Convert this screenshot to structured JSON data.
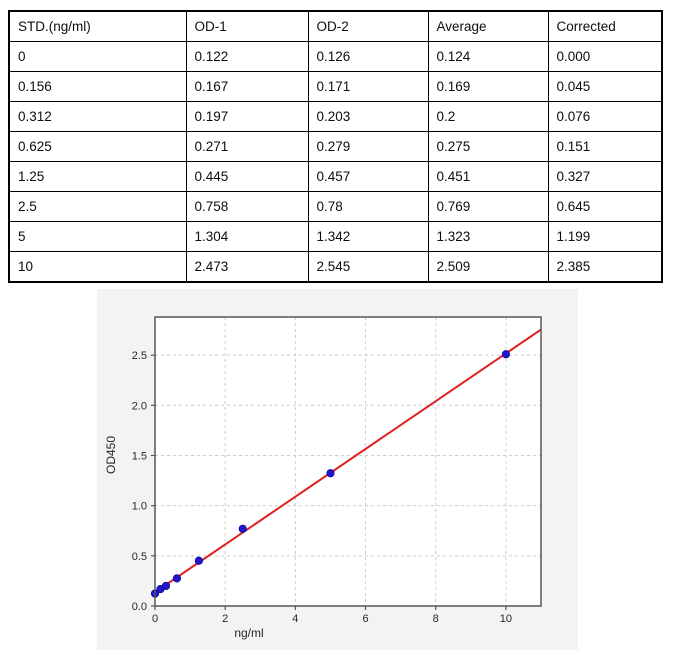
{
  "table": {
    "headers": [
      "STD.(ng/ml)",
      "OD-1",
      "OD-2",
      "Average",
      "Corrected"
    ],
    "rows": [
      [
        "0",
        "0.122",
        "0.126",
        "0.124",
        "0.000"
      ],
      [
        "0.156",
        "0.167",
        "0.171",
        "0.169",
        "0.045"
      ],
      [
        "0.312",
        "0.197",
        "0.203",
        "0.2",
        "0.076"
      ],
      [
        "0.625",
        "0.271",
        "0.279",
        "0.275",
        "0.151"
      ],
      [
        "1.25",
        "0.445",
        "0.457",
        "0.451",
        "0.327"
      ],
      [
        "2.5",
        "0.758",
        "0.78",
        "0.769",
        "0.645"
      ],
      [
        "5",
        "1.304",
        "1.342",
        "1.323",
        "1.199"
      ],
      [
        "10",
        "2.473",
        "2.545",
        "2.509",
        "2.385"
      ]
    ]
  },
  "chart_data": {
    "type": "scatter",
    "title": "",
    "xlabel": "ng/ml",
    "ylabel": "OD450",
    "x": [
      0,
      0.156,
      0.312,
      0.625,
      1.25,
      2.5,
      5,
      10
    ],
    "y": [
      0.124,
      0.169,
      0.2,
      0.275,
      0.451,
      0.769,
      1.323,
      2.509
    ],
    "fit_line": {
      "type": "linear",
      "slope": 0.238,
      "intercept": 0.137
    },
    "xlim": [
      0,
      11
    ],
    "ylim": [
      0,
      2.88
    ],
    "xticks": [
      0,
      2,
      4,
      6,
      8,
      10
    ],
    "xticklabels": [
      "0",
      "2",
      "4",
      "6",
      "8",
      "10"
    ],
    "yticks": [
      0,
      0.5,
      1.0,
      1.5,
      2.0,
      2.5
    ],
    "yticklabels": [
      "0.0",
      "0.5",
      "1.0",
      "1.5",
      "2.0",
      "2.5"
    ],
    "grid": true,
    "legend": "none",
    "colors": {
      "point_fill": "#2316cf",
      "point_edge": "#1509a4",
      "fit_line": "#e02020",
      "figure_bg": "#f3f3f3",
      "plot_bg": "#ffffff",
      "axis_frame": "#555555",
      "grid_line": "#cccccc",
      "tick_text": "#262626"
    }
  }
}
